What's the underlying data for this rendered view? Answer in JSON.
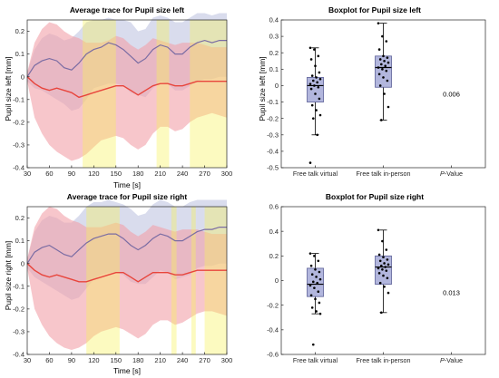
{
  "chart_data": [
    {
      "type": "area",
      "title": "Average trace for Pupil size left",
      "xlabel": "Time [s]",
      "ylabel": "Pupil size left [mm]",
      "xlim": [
        30,
        300
      ],
      "ylim": [
        -0.4,
        0.25
      ],
      "xticks": [
        30,
        60,
        90,
        120,
        150,
        180,
        210,
        240,
        270,
        300
      ],
      "yticks": [
        -0.4,
        -0.3,
        -0.2,
        -0.1,
        0,
        0.1,
        0.2
      ],
      "highlights": [
        [
          105,
          150
        ],
        [
          205,
          222
        ],
        [
          250,
          300
        ]
      ],
      "grid": false,
      "series": [
        {
          "x": [
            30,
            40,
            50,
            60,
            70,
            80,
            90,
            100,
            110,
            120,
            130,
            140,
            150,
            160,
            170,
            180,
            190,
            200,
            210,
            220,
            230,
            240,
            250,
            260,
            270,
            280,
            290,
            300
          ],
          "values": [
            0.0,
            0.05,
            0.07,
            0.08,
            0.07,
            0.04,
            0.03,
            0.06,
            0.1,
            0.12,
            0.13,
            0.15,
            0.14,
            0.12,
            0.09,
            0.06,
            0.08,
            0.12,
            0.14,
            0.13,
            0.1,
            0.1,
            0.13,
            0.15,
            0.16,
            0.15,
            0.16,
            0.16
          ],
          "lower": [
            -0.02,
            -0.05,
            -0.06,
            -0.08,
            -0.1,
            -0.12,
            -0.15,
            -0.14,
            -0.1,
            -0.05,
            -0.04,
            -0.03,
            -0.03,
            -0.04,
            -0.07,
            -0.08,
            -0.09,
            -0.05,
            -0.02,
            -0.03,
            -0.06,
            -0.06,
            -0.04,
            -0.02,
            -0.01,
            -0.01,
            0.0,
            0.0
          ],
          "upper": [
            0.02,
            0.12,
            0.17,
            0.19,
            0.18,
            0.16,
            0.17,
            0.2,
            0.24,
            0.25,
            0.25,
            0.26,
            0.25,
            0.25,
            0.24,
            0.2,
            0.21,
            0.26,
            0.27,
            0.26,
            0.24,
            0.24,
            0.26,
            0.28,
            0.28,
            0.27,
            0.28,
            0.28
          ],
          "color": "#7a6ca3",
          "band_color": "#b9c0de"
        },
        {
          "x": [
            30,
            40,
            50,
            60,
            70,
            80,
            90,
            100,
            110,
            120,
            130,
            140,
            150,
            160,
            170,
            180,
            190,
            200,
            210,
            220,
            230,
            240,
            250,
            260,
            270,
            280,
            290,
            300
          ],
          "values": [
            0.0,
            -0.03,
            -0.05,
            -0.06,
            -0.05,
            -0.06,
            -0.07,
            -0.09,
            -0.08,
            -0.07,
            -0.06,
            -0.05,
            -0.04,
            -0.04,
            -0.06,
            -0.08,
            -0.06,
            -0.04,
            -0.03,
            -0.03,
            -0.04,
            -0.04,
            -0.03,
            -0.02,
            -0.02,
            -0.02,
            -0.02,
            -0.02
          ],
          "lower": [
            -0.02,
            -0.18,
            -0.25,
            -0.3,
            -0.33,
            -0.35,
            -0.37,
            -0.36,
            -0.34,
            -0.31,
            -0.28,
            -0.27,
            -0.26,
            -0.27,
            -0.3,
            -0.32,
            -0.3,
            -0.25,
            -0.22,
            -0.22,
            -0.24,
            -0.23,
            -0.2,
            -0.18,
            -0.17,
            -0.16,
            -0.17,
            -0.18
          ],
          "upper": [
            0.02,
            0.15,
            0.21,
            0.24,
            0.23,
            0.2,
            0.18,
            0.17,
            0.15,
            0.15,
            0.15,
            0.16,
            0.18,
            0.17,
            0.14,
            0.12,
            0.14,
            0.17,
            0.16,
            0.15,
            0.14,
            0.15,
            0.15,
            0.15,
            0.14,
            0.13,
            0.13,
            0.13
          ],
          "color": "#e8453c",
          "band_color": "#f1a0a8"
        }
      ]
    },
    {
      "type": "boxplot",
      "title": "Boxplot for Pupil size left",
      "ylabel": "Pupil size left [mm]",
      "ylim": [
        -0.5,
        0.4
      ],
      "yticks": [
        -0.5,
        -0.4,
        -0.3,
        -0.2,
        -0.1,
        0,
        0.1,
        0.2,
        0.3,
        0.4
      ],
      "categories": [
        "Free talk virtual",
        "Free talk in-person",
        "P-Value"
      ],
      "boxes": [
        {
          "name": "Free talk virtual",
          "min": -0.3,
          "q1": -0.1,
          "median": 0.0,
          "q3": 0.05,
          "max": 0.23,
          "points": [
            0.23,
            0.22,
            0.18,
            0.16,
            0.12,
            0.08,
            0.06,
            0.05,
            0.04,
            0.03,
            0.02,
            0.01,
            0.0,
            -0.01,
            -0.02,
            -0.05,
            -0.08,
            -0.12,
            -0.15,
            -0.18,
            -0.2,
            -0.3,
            -0.47
          ]
        },
        {
          "name": "Free talk in-person",
          "min": -0.21,
          "q1": -0.01,
          "median": 0.11,
          "q3": 0.18,
          "max": 0.38,
          "points": [
            0.38,
            0.3,
            0.27,
            0.22,
            0.18,
            0.17,
            0.16,
            0.15,
            0.14,
            0.13,
            0.12,
            0.11,
            0.1,
            0.09,
            0.07,
            0.05,
            0.03,
            0.0,
            -0.05,
            -0.13,
            -0.21
          ]
        }
      ],
      "p_value": "0.006"
    },
    {
      "type": "area",
      "title": "Average trace for Pupil size right",
      "xlabel": "Time [s]",
      "ylabel": "Pupil size right [mm]",
      "xlim": [
        30,
        300
      ],
      "ylim": [
        -0.4,
        0.25
      ],
      "xticks": [
        30,
        60,
        90,
        120,
        150,
        180,
        210,
        240,
        270,
        300
      ],
      "yticks": [
        -0.4,
        -0.3,
        -0.2,
        -0.1,
        0,
        0.1,
        0.2
      ],
      "highlights": [
        [
          110,
          155
        ],
        [
          225,
          232
        ],
        [
          252,
          258
        ],
        [
          270,
          300
        ]
      ],
      "grid": false,
      "series": [
        {
          "x": [
            30,
            40,
            50,
            60,
            70,
            80,
            90,
            100,
            110,
            120,
            130,
            140,
            150,
            160,
            170,
            180,
            190,
            200,
            210,
            220,
            230,
            240,
            250,
            260,
            270,
            280,
            290,
            300
          ],
          "values": [
            0.0,
            0.05,
            0.07,
            0.08,
            0.06,
            0.04,
            0.03,
            0.06,
            0.09,
            0.11,
            0.12,
            0.13,
            0.13,
            0.11,
            0.08,
            0.06,
            0.08,
            0.11,
            0.13,
            0.12,
            0.1,
            0.1,
            0.12,
            0.14,
            0.15,
            0.15,
            0.16,
            0.16
          ],
          "lower": [
            -0.02,
            -0.06,
            -0.08,
            -0.1,
            -0.12,
            -0.14,
            -0.16,
            -0.15,
            -0.11,
            -0.07,
            -0.05,
            -0.04,
            -0.04,
            -0.05,
            -0.08,
            -0.09,
            -0.09,
            -0.06,
            -0.03,
            -0.04,
            -0.07,
            -0.06,
            -0.05,
            -0.02,
            -0.01,
            -0.01,
            0.0,
            0.0
          ],
          "upper": [
            0.02,
            0.14,
            0.19,
            0.21,
            0.2,
            0.18,
            0.18,
            0.21,
            0.25,
            0.27,
            0.27,
            0.28,
            0.27,
            0.26,
            0.24,
            0.21,
            0.22,
            0.26,
            0.28,
            0.27,
            0.25,
            0.25,
            0.27,
            0.28,
            0.28,
            0.28,
            0.28,
            0.28
          ],
          "color": "#7a6ca3",
          "band_color": "#b9c0de"
        },
        {
          "x": [
            30,
            40,
            50,
            60,
            70,
            80,
            90,
            100,
            110,
            120,
            130,
            140,
            150,
            160,
            170,
            180,
            190,
            200,
            210,
            220,
            230,
            240,
            250,
            260,
            270,
            280,
            290,
            300
          ],
          "values": [
            0.0,
            -0.03,
            -0.05,
            -0.06,
            -0.05,
            -0.06,
            -0.07,
            -0.08,
            -0.08,
            -0.07,
            -0.06,
            -0.05,
            -0.04,
            -0.04,
            -0.06,
            -0.08,
            -0.06,
            -0.04,
            -0.04,
            -0.04,
            -0.05,
            -0.05,
            -0.04,
            -0.03,
            -0.03,
            -0.03,
            -0.03,
            -0.03
          ],
          "lower": [
            -0.02,
            -0.2,
            -0.27,
            -0.32,
            -0.35,
            -0.37,
            -0.38,
            -0.37,
            -0.35,
            -0.32,
            -0.3,
            -0.29,
            -0.28,
            -0.29,
            -0.31,
            -0.33,
            -0.31,
            -0.27,
            -0.25,
            -0.25,
            -0.27,
            -0.26,
            -0.24,
            -0.22,
            -0.21,
            -0.21,
            -0.22,
            -0.23
          ],
          "upper": [
            0.02,
            0.16,
            0.22,
            0.25,
            0.24,
            0.21,
            0.19,
            0.18,
            0.16,
            0.16,
            0.16,
            0.17,
            0.18,
            0.17,
            0.14,
            0.12,
            0.14,
            0.17,
            0.16,
            0.15,
            0.14,
            0.15,
            0.15,
            0.15,
            0.14,
            0.13,
            0.13,
            0.13
          ],
          "color": "#e8453c",
          "band_color": "#f1a0a8"
        }
      ]
    },
    {
      "type": "boxplot",
      "title": "Boxplot for Pupil size right",
      "ylabel": "",
      "ylim": [
        -0.6,
        0.6
      ],
      "yticks": [
        -0.6,
        -0.4,
        -0.2,
        0,
        0.2,
        0.4,
        0.6
      ],
      "categories": [
        "Free talk virtual",
        "Free talk in-person",
        "P-Value"
      ],
      "boxes": [
        {
          "name": "Free talk virtual",
          "min": -0.27,
          "q1": -0.13,
          "median": -0.03,
          "q3": 0.1,
          "max": 0.22,
          "points": [
            0.22,
            0.2,
            0.16,
            0.12,
            0.09,
            0.07,
            0.05,
            0.03,
            0.01,
            -0.01,
            -0.02,
            -0.04,
            -0.06,
            -0.09,
            -0.12,
            -0.15,
            -0.18,
            -0.22,
            -0.25,
            -0.27,
            -0.52
          ]
        },
        {
          "name": "Free talk in-person",
          "min": -0.26,
          "q1": -0.03,
          "median": 0.11,
          "q3": 0.2,
          "max": 0.41,
          "points": [
            0.41,
            0.32,
            0.25,
            0.21,
            0.19,
            0.17,
            0.16,
            0.14,
            0.13,
            0.12,
            0.11,
            0.1,
            0.09,
            0.08,
            0.06,
            0.04,
            0.02,
            -0.02,
            -0.05,
            -0.1,
            -0.26
          ]
        }
      ],
      "p_value": "0.013"
    }
  ]
}
